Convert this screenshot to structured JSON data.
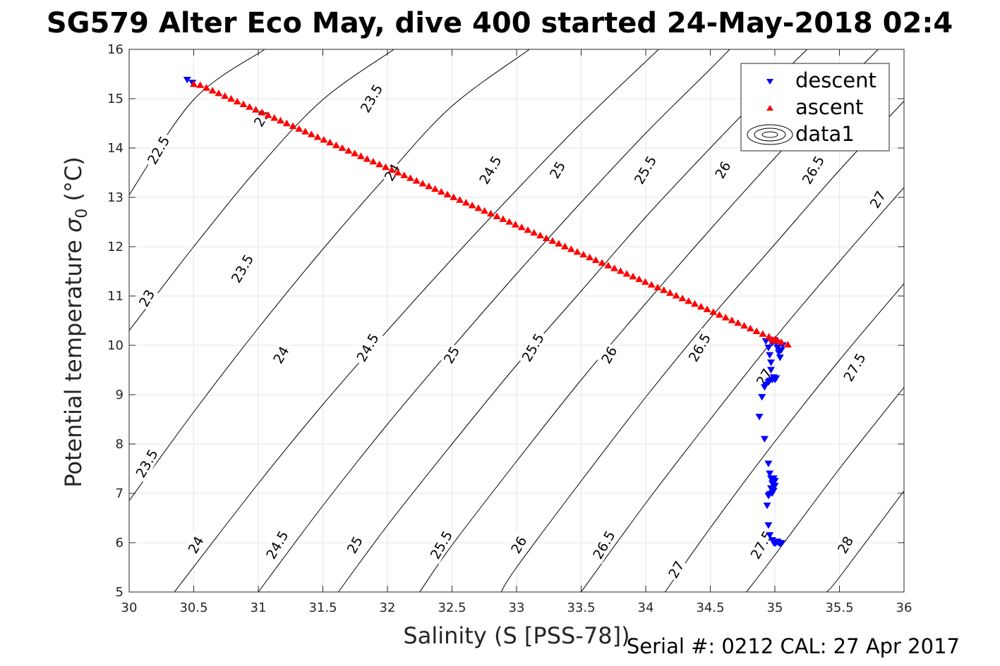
{
  "chart_data": {
    "type": "scatter",
    "title": "SG579 Alter Eco May, dive 400 started 24-May-2018 02:4",
    "xlabel": "Salinity (S [PSS-78])",
    "ylabel_prefix": "Potential temperature ",
    "ylabel_sigma": "σ",
    "ylabel_sub": "0",
    "ylabel_suffix": " (°C)",
    "xlim": [
      30,
      36
    ],
    "ylim": [
      5,
      16
    ],
    "xticks": [
      30,
      30.5,
      31,
      31.5,
      32,
      32.5,
      33,
      33.5,
      34,
      34.5,
      35,
      35.5,
      36
    ],
    "xtick_labels": [
      "30",
      "30.5",
      "31",
      "31.5",
      "32",
      "32.5",
      "33",
      "33.5",
      "34",
      "34.5",
      "35",
      "35.5",
      "36"
    ],
    "yticks": [
      5,
      6,
      7,
      8,
      9,
      10,
      11,
      12,
      13,
      14,
      15,
      16
    ],
    "ytick_labels": [
      "5",
      "6",
      "7",
      "8",
      "9",
      "10",
      "11",
      "12",
      "13",
      "14",
      "15",
      "16"
    ],
    "grid": true,
    "legend_position": "top-right",
    "legend": [
      {
        "label": "descent",
        "marker": "triangle-down",
        "color": "#0000ff"
      },
      {
        "label": "ascent",
        "marker": "triangle-up",
        "color": "#ff0000"
      },
      {
        "label": "data1",
        "marker": "contour",
        "color": "#000000"
      }
    ],
    "contours": [
      {
        "level": "22.5",
        "points": [
          [
            30.0,
            13.05
          ],
          [
            30.5,
            14.98
          ],
          [
            31.05,
            16.0
          ]
        ]
      },
      {
        "level": "23",
        "points": [
          [
            30.0,
            10.3
          ],
          [
            30.5,
            12.0
          ],
          [
            31.0,
            13.6
          ],
          [
            31.5,
            14.98
          ],
          [
            32.05,
            16.0
          ]
        ]
      },
      {
        "level": "23.5",
        "points": [
          [
            30.0,
            6.85
          ],
          [
            30.5,
            8.65
          ],
          [
            31.0,
            10.35
          ],
          [
            31.5,
            11.95
          ],
          [
            32.0,
            13.45
          ],
          [
            32.5,
            14.85
          ],
          [
            33.1,
            16.0
          ]
        ]
      },
      {
        "level": "24",
        "points": [
          [
            30.35,
            5.0
          ],
          [
            31.0,
            7.2
          ],
          [
            31.5,
            8.8
          ],
          [
            32.0,
            10.3
          ],
          [
            32.5,
            11.75
          ],
          [
            33.0,
            13.15
          ],
          [
            33.5,
            14.5
          ],
          [
            34.1,
            16.0
          ]
        ]
      },
      {
        "level": "24.5",
        "points": [
          [
            31.0,
            5.0
          ],
          [
            31.5,
            6.75
          ],
          [
            32.0,
            8.4
          ],
          [
            32.5,
            9.95
          ],
          [
            33.0,
            11.45
          ],
          [
            33.5,
            12.9
          ],
          [
            34.0,
            14.3
          ],
          [
            34.5,
            15.6
          ],
          [
            34.65,
            16.0
          ]
        ]
      },
      {
        "level": "25",
        "points": [
          [
            31.62,
            5.0
          ],
          [
            32.0,
            6.35
          ],
          [
            32.5,
            8.0
          ],
          [
            33.0,
            9.6
          ],
          [
            33.5,
            11.1
          ],
          [
            34.0,
            12.6
          ],
          [
            34.5,
            14.0
          ],
          [
            35.0,
            15.35
          ],
          [
            35.25,
            16.0
          ]
        ]
      },
      {
        "level": "25.5",
        "points": [
          [
            32.25,
            5.0
          ],
          [
            32.5,
            5.95
          ],
          [
            33.0,
            7.65
          ],
          [
            33.5,
            9.3
          ],
          [
            34.0,
            10.85
          ],
          [
            34.5,
            12.35
          ],
          [
            35.0,
            13.8
          ],
          [
            35.5,
            15.2
          ],
          [
            35.8,
            16.0
          ]
        ]
      },
      {
        "level": "26",
        "points": [
          [
            32.88,
            5.0
          ],
          [
            33.0,
            5.5
          ],
          [
            33.5,
            7.25
          ],
          [
            34.0,
            8.95
          ],
          [
            34.5,
            10.55
          ],
          [
            35.0,
            12.05
          ],
          [
            35.5,
            13.55
          ],
          [
            36.0,
            14.95
          ]
        ]
      },
      {
        "level": "26.5",
        "points": [
          [
            33.5,
            5.0
          ],
          [
            34.0,
            6.8
          ],
          [
            34.5,
            8.5
          ],
          [
            35.0,
            10.15
          ],
          [
            35.5,
            11.7
          ],
          [
            36.0,
            13.2
          ]
        ]
      },
      {
        "level": "27",
        "points": [
          [
            34.15,
            5.0
          ],
          [
            34.5,
            6.3
          ],
          [
            35.0,
            8.05
          ],
          [
            35.5,
            9.7
          ],
          [
            36.0,
            11.25
          ]
        ]
      },
      {
        "level": "27.5",
        "points": [
          [
            34.78,
            5.0
          ],
          [
            35.0,
            5.75
          ],
          [
            35.5,
            7.5
          ],
          [
            36.0,
            9.15
          ]
        ]
      },
      {
        "level": "28",
        "points": [
          [
            35.4,
            5.0
          ],
          [
            35.5,
            5.3
          ],
          [
            36.0,
            7.05
          ]
        ]
      }
    ],
    "contour_labels": [
      {
        "text": "22.5",
        "x": 30.23,
        "y": 13.95
      },
      {
        "text": "23",
        "x": 30.14,
        "y": 10.95
      },
      {
        "text": "23",
        "x": 31.03,
        "y": 14.6
      },
      {
        "text": "23.5",
        "x": 30.14,
        "y": 7.6
      },
      {
        "text": "23.5",
        "x": 30.88,
        "y": 11.55
      },
      {
        "text": "23.5",
        "x": 31.88,
        "y": 15.0
      },
      {
        "text": "24",
        "x": 30.52,
        "y": 5.95
      },
      {
        "text": "24",
        "x": 31.18,
        "y": 9.8
      },
      {
        "text": "24",
        "x": 32.04,
        "y": 13.5
      },
      {
        "text": "24.5",
        "x": 31.15,
        "y": 5.95
      },
      {
        "text": "24.5",
        "x": 31.85,
        "y": 9.95
      },
      {
        "text": "24.5",
        "x": 32.8,
        "y": 13.55
      },
      {
        "text": "25",
        "x": 31.75,
        "y": 5.95
      },
      {
        "text": "25",
        "x": 32.5,
        "y": 9.8
      },
      {
        "text": "25",
        "x": 33.32,
        "y": 13.55
      },
      {
        "text": "25.5",
        "x": 32.42,
        "y": 5.95
      },
      {
        "text": "25.5",
        "x": 33.13,
        "y": 9.95
      },
      {
        "text": "25.5",
        "x": 34.0,
        "y": 13.55
      },
      {
        "text": "26",
        "x": 33.02,
        "y": 5.95
      },
      {
        "text": "26",
        "x": 33.72,
        "y": 9.8
      },
      {
        "text": "26",
        "x": 34.6,
        "y": 13.55
      },
      {
        "text": "26.5",
        "x": 33.68,
        "y": 5.95
      },
      {
        "text": "26.5",
        "x": 34.42,
        "y": 9.95
      },
      {
        "text": "26.5",
        "x": 35.3,
        "y": 13.55
      },
      {
        "text": "27",
        "x": 34.24,
        "y": 5.45
      },
      {
        "text": "27",
        "x": 34.92,
        "y": 9.35
      },
      {
        "text": "27",
        "x": 35.8,
        "y": 12.95
      },
      {
        "text": "27.5",
        "x": 34.9,
        "y": 5.95
      },
      {
        "text": "27.5",
        "x": 35.62,
        "y": 9.55
      },
      {
        "text": "28",
        "x": 35.55,
        "y": 5.95
      }
    ],
    "series": [
      {
        "name": "descent",
        "marker": "triangle-down",
        "color": "#0000ff",
        "x": [
          30.45,
          30.49,
          34.93,
          34.95,
          34.96,
          34.97,
          34.98,
          34.99,
          35.0,
          35.01,
          35.02,
          35.03,
          35.04,
          35.05,
          35.06,
          34.97,
          34.99,
          35.01,
          35.0,
          34.98,
          34.96,
          34.95,
          34.93,
          34.92,
          34.9,
          34.88,
          34.92,
          34.95,
          34.96,
          34.97,
          34.98,
          34.97,
          34.99,
          35.0,
          35.0,
          34.99,
          34.98,
          34.96,
          34.95,
          34.94,
          34.95,
          34.96,
          34.98,
          34.99,
          35.0,
          35.01,
          35.02,
          35.03,
          35.04,
          35.05
        ],
        "y": [
          15.38,
          15.32,
          10.08,
          9.95,
          9.8,
          9.65,
          10.05,
          10.08,
          10.1,
          10.05,
          9.95,
          9.85,
          9.75,
          9.9,
          10.0,
          9.5,
          9.35,
          9.33,
          9.3,
          9.3,
          9.28,
          9.25,
          9.2,
          9.15,
          8.95,
          8.55,
          8.1,
          7.6,
          7.4,
          7.3,
          7.2,
          7.1,
          7.05,
          7.15,
          7.25,
          7.3,
          7.0,
          6.98,
          6.95,
          6.75,
          6.35,
          6.15,
          6.05,
          6.0,
          5.98,
          6.0,
          6.02,
          5.99,
          5.98,
          5.99
        ]
      },
      {
        "name": "ascent",
        "marker": "triangle-up",
        "color": "#ff0000",
        "x": [
          30.5,
          35.1,
          35.02,
          34.98,
          35.0
        ],
        "y": [
          15.3,
          10.02,
          10.1,
          10.12,
          10.1
        ],
        "line_fill": {
          "x0": 30.55,
          "y0": 15.28,
          "x1": 35.05,
          "y1": 10.07,
          "count": 95
        }
      }
    ]
  },
  "footer": {
    "serial_text": "Serial #: 0212  CAL: 27 Apr 2017"
  }
}
